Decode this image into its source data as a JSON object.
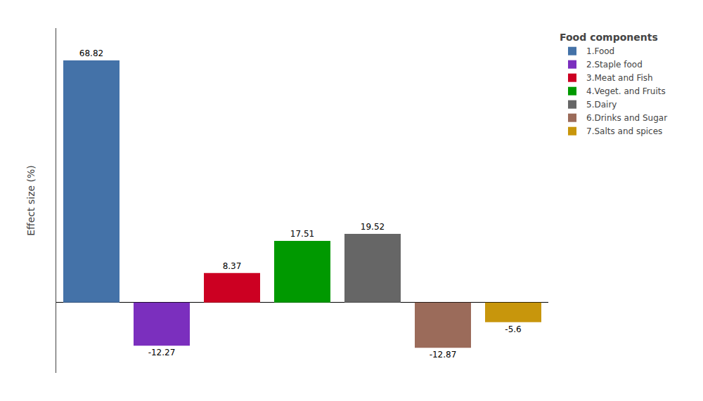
{
  "chart_data": {
    "type": "bar",
    "categories": [
      "1.Food",
      "2.Staple food",
      "3.Meat and Fish",
      "4.Veget. and Fruits",
      "5.Dairy",
      "6.Drinks and Sugar",
      "7.Salts and spices"
    ],
    "values": [
      68.82,
      -12.27,
      8.37,
      17.51,
      19.52,
      -12.87,
      -5.6
    ],
    "colors": [
      "#4472a8",
      "#7b2fbe",
      "#cc0022",
      "#009900",
      "#666666",
      "#9b6b5a",
      "#c8960c"
    ],
    "ylabel": "Effect size (%)",
    "legend_title": "Food components",
    "ylim": [
      -20,
      78
    ],
    "yticks": [],
    "grid": false,
    "legend": "right",
    "data_labels": true,
    "tick_labels": false
  }
}
